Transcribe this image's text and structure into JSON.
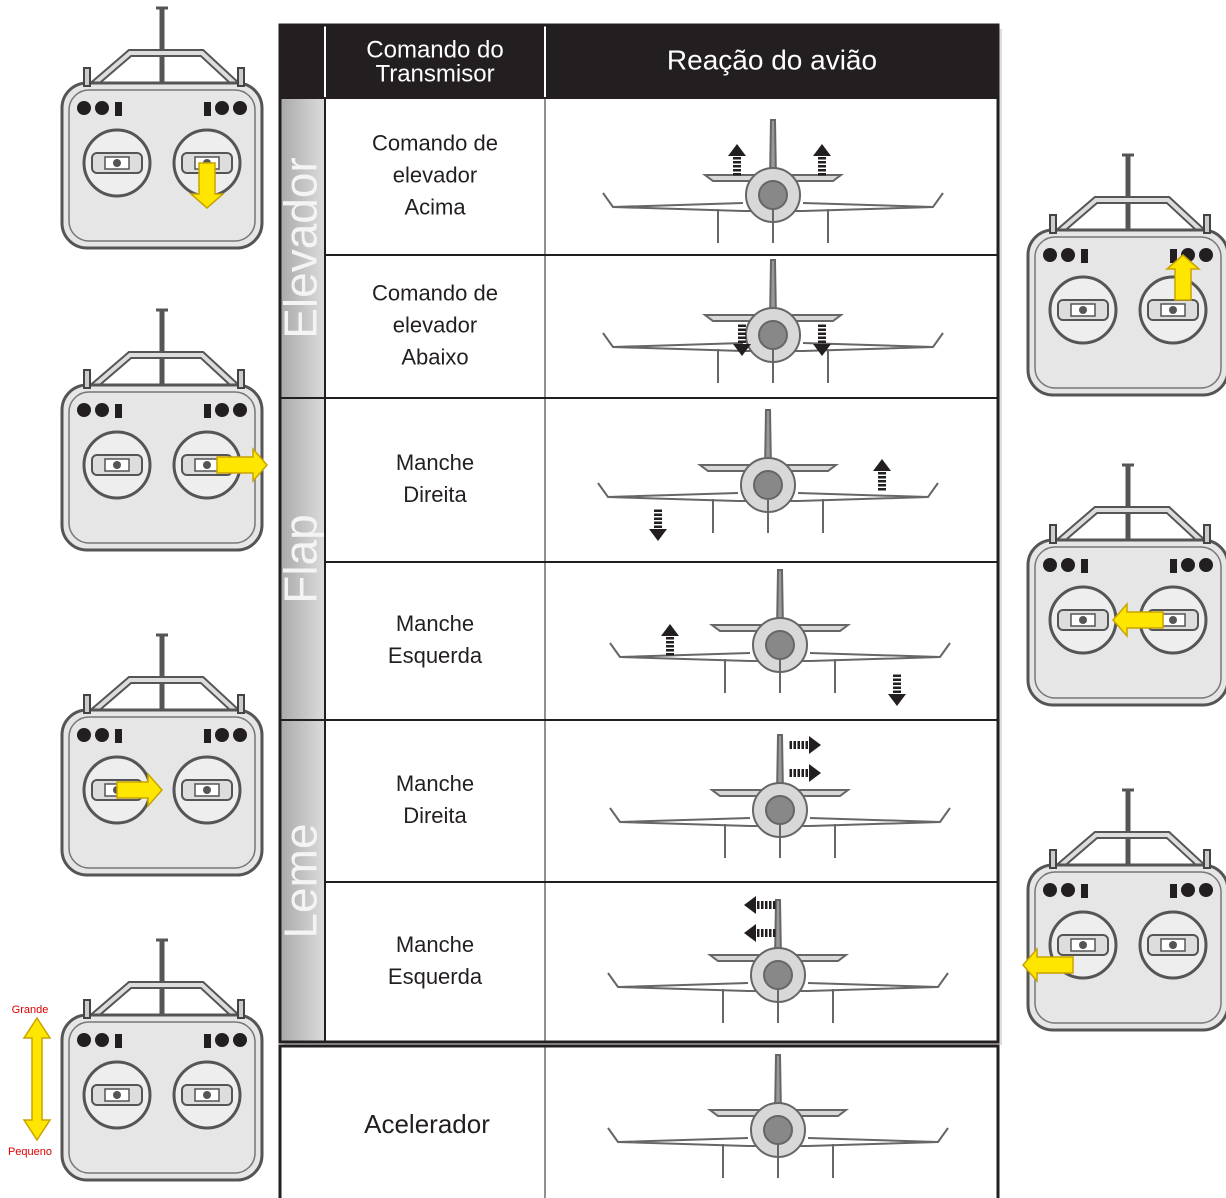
{
  "header": {
    "command": [
      "Comando do",
      "Transmisor"
    ],
    "reaction": "Reação do avião"
  },
  "groups": [
    {
      "label": "Elevador",
      "rows": [
        {
          "command": [
            "Comando de",
            "elevador",
            "Acima"
          ]
        },
        {
          "command": [
            "Comando de",
            "elevador",
            "Abaixo"
          ]
        }
      ]
    },
    {
      "label": "Flap",
      "rows": [
        {
          "command": [
            "Manche",
            "Direita"
          ]
        },
        {
          "command": [
            "Manche",
            "Esquerda"
          ]
        }
      ]
    },
    {
      "label": "Leme",
      "rows": [
        {
          "command": [
            "Manche",
            "Direita"
          ]
        },
        {
          "command": [
            "Manche",
            "Esquerda"
          ]
        }
      ]
    }
  ],
  "throttle": {
    "command": "Acelerador",
    "high": "Grande",
    "low": "Pequeno"
  }
}
